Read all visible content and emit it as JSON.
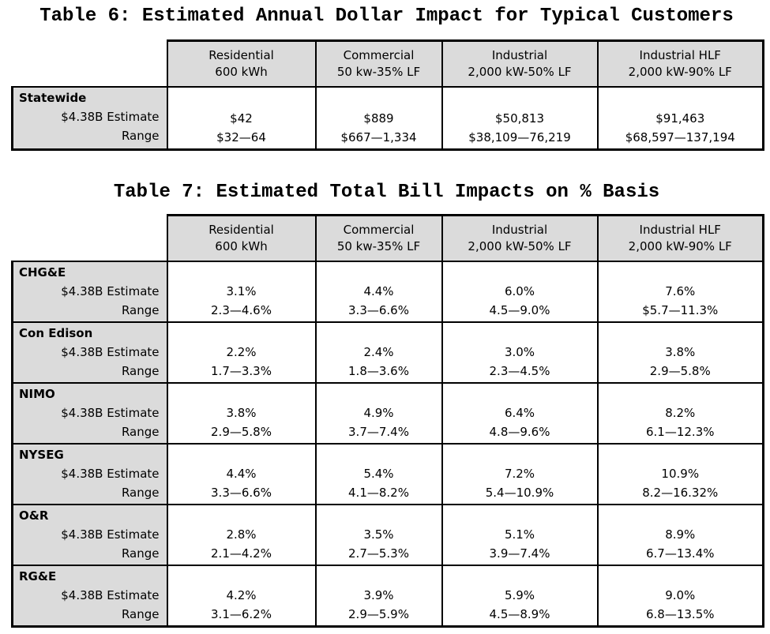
{
  "colors": {
    "header_bg": "#dbdbdb",
    "row_label_bg": "#dbdbdb",
    "cell_bg": "#ffffff",
    "border": "#000000",
    "text": "#000000"
  },
  "table6": {
    "title": "Table 6: Estimated Annual Dollar Impact for Typical Customers",
    "columns": [
      {
        "line1": "Residential",
        "line2": "600 kWh"
      },
      {
        "line1": "Commercial",
        "line2": "50 kw-35% LF"
      },
      {
        "line1": "Industrial",
        "line2": "2,000 kW-50% LF"
      },
      {
        "line1": "Industrial HLF",
        "line2": "2,000 kW-90% LF"
      }
    ],
    "estimate_label": "$4.38B Estimate",
    "range_label": "Range",
    "rows": [
      {
        "name": "Statewide",
        "cells": [
          {
            "estimate": "$42",
            "range": "$32—64"
          },
          {
            "estimate": "$889",
            "range": "$667—1,334"
          },
          {
            "estimate": "$50,813",
            "range": "$38,109—76,219"
          },
          {
            "estimate": "$91,463",
            "range": "$68,597—137,194"
          }
        ]
      }
    ]
  },
  "table7": {
    "title": "Table 7: Estimated Total Bill Impacts on % Basis",
    "columns": [
      {
        "line1": "Residential",
        "line2": "600 kWh"
      },
      {
        "line1": "Commercial",
        "line2": "50 kw-35% LF"
      },
      {
        "line1": "Industrial",
        "line2": "2,000 kW-50% LF"
      },
      {
        "line1": "Industrial HLF",
        "line2": "2,000 kW-90% LF"
      }
    ],
    "estimate_label": "$4.38B Estimate",
    "range_label": "Range",
    "rows": [
      {
        "name": "CHG&E",
        "cells": [
          {
            "estimate": "3.1%",
            "range": "2.3—4.6%"
          },
          {
            "estimate": "4.4%",
            "range": "3.3—6.6%"
          },
          {
            "estimate": "6.0%",
            "range": "4.5—9.0%"
          },
          {
            "estimate": "7.6%",
            "range": "$5.7—11.3%"
          }
        ]
      },
      {
        "name": "Con Edison",
        "cells": [
          {
            "estimate": "2.2%",
            "range": "1.7—3.3%"
          },
          {
            "estimate": "2.4%",
            "range": "1.8—3.6%"
          },
          {
            "estimate": "3.0%",
            "range": "2.3—4.5%"
          },
          {
            "estimate": "3.8%",
            "range": "2.9—5.8%"
          }
        ]
      },
      {
        "name": "NIMO",
        "cells": [
          {
            "estimate": "3.8%",
            "range": "2.9—5.8%"
          },
          {
            "estimate": "4.9%",
            "range": "3.7—7.4%"
          },
          {
            "estimate": "6.4%",
            "range": "4.8—9.6%"
          },
          {
            "estimate": "8.2%",
            "range": "6.1—12.3%"
          }
        ]
      },
      {
        "name": "NYSEG",
        "cells": [
          {
            "estimate": "4.4%",
            "range": "3.3—6.6%"
          },
          {
            "estimate": "5.4%",
            "range": "4.1—8.2%"
          },
          {
            "estimate": "7.2%",
            "range": "5.4—10.9%"
          },
          {
            "estimate": "10.9%",
            "range": "8.2—16.32%"
          }
        ]
      },
      {
        "name": "O&R",
        "cells": [
          {
            "estimate": "2.8%",
            "range": "2.1—4.2%"
          },
          {
            "estimate": "3.5%",
            "range": "2.7—5.3%"
          },
          {
            "estimate": "5.1%",
            "range": "3.9—7.4%"
          },
          {
            "estimate": "8.9%",
            "range": "6.7—13.4%"
          }
        ]
      },
      {
        "name": "RG&E",
        "cells": [
          {
            "estimate": "4.2%",
            "range": "3.1—6.2%"
          },
          {
            "estimate": "3.9%",
            "range": "2.9—5.9%"
          },
          {
            "estimate": "5.9%",
            "range": "4.5—8.9%"
          },
          {
            "estimate": "9.0%",
            "range": "6.8—13.5%"
          }
        ]
      }
    ]
  }
}
